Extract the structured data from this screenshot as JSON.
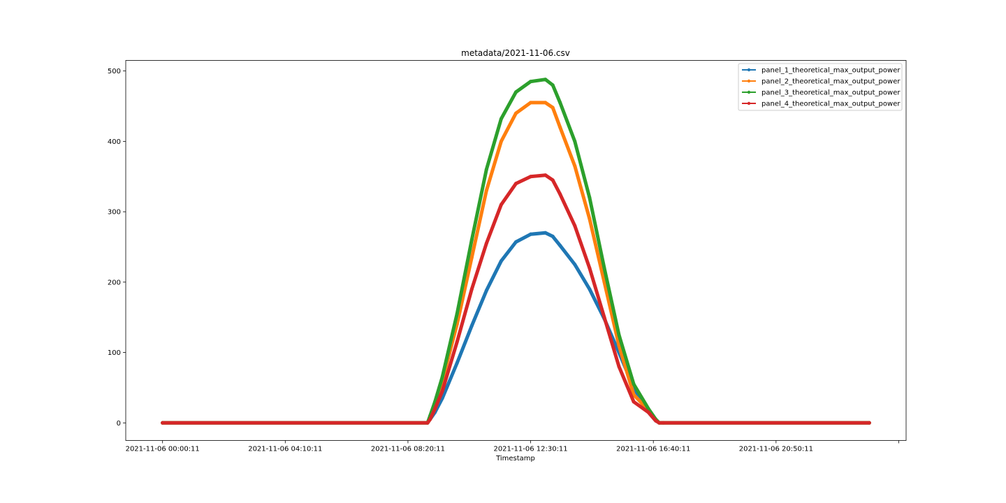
{
  "chart_data": {
    "type": "line",
    "title": "metadata/2021-11-06.csv",
    "xlabel": "Timestamp",
    "ylabel": "",
    "x_tick_labels": [
      "2021-11-06 00:00:11",
      "2021-11-06 04:10:11",
      "2021-11-06 08:20:11",
      "2021-11-06 12:30:11",
      "2021-11-06 16:40:11",
      "2021-11-06 20:50:11",
      ""
    ],
    "x_ticks_minutes": [
      0,
      250,
      500,
      750,
      1000,
      1250,
      1500
    ],
    "x_range_minutes": [
      -75,
      1515
    ],
    "ylim": [
      -25,
      515
    ],
    "y_ticks": [
      0,
      100,
      200,
      300,
      400,
      500
    ],
    "grid": false,
    "legend_position": "top-right",
    "x_minutes": [
      0,
      540,
      545,
      555,
      570,
      600,
      630,
      660,
      690,
      720,
      750,
      780,
      795,
      810,
      840,
      870,
      900,
      930,
      960,
      990,
      1005,
      1012,
      1020,
      1440
    ],
    "series": [
      {
        "name": "panel_1_theoretical_max_output_power",
        "color": "#1f77b4",
        "values": [
          0,
          0,
          5,
          15,
          35,
          85,
          138,
          188,
          230,
          257,
          268,
          270,
          265,
          252,
          225,
          190,
          148,
          100,
          50,
          15,
          3,
          0,
          0,
          0
        ]
      },
      {
        "name": "panel_2_theoretical_max_output_power",
        "color": "#ff7f0e",
        "values": [
          0,
          0,
          5,
          25,
          60,
          140,
          235,
          330,
          400,
          440,
          455,
          455,
          448,
          420,
          365,
          290,
          200,
          110,
          40,
          18,
          4,
          0,
          0,
          0
        ]
      },
      {
        "name": "panel_3_theoretical_max_output_power",
        "color": "#2ca02c",
        "values": [
          0,
          0,
          10,
          30,
          65,
          155,
          260,
          360,
          432,
          470,
          485,
          488,
          480,
          455,
          400,
          320,
          220,
          125,
          55,
          20,
          5,
          0,
          0,
          0
        ]
      },
      {
        "name": "panel_4_theoretical_max_output_power",
        "color": "#d62728",
        "values": [
          0,
          0,
          5,
          20,
          45,
          115,
          190,
          255,
          310,
          340,
          350,
          352,
          345,
          325,
          280,
          220,
          150,
          80,
          30,
          15,
          3,
          0,
          0,
          0
        ]
      }
    ]
  }
}
